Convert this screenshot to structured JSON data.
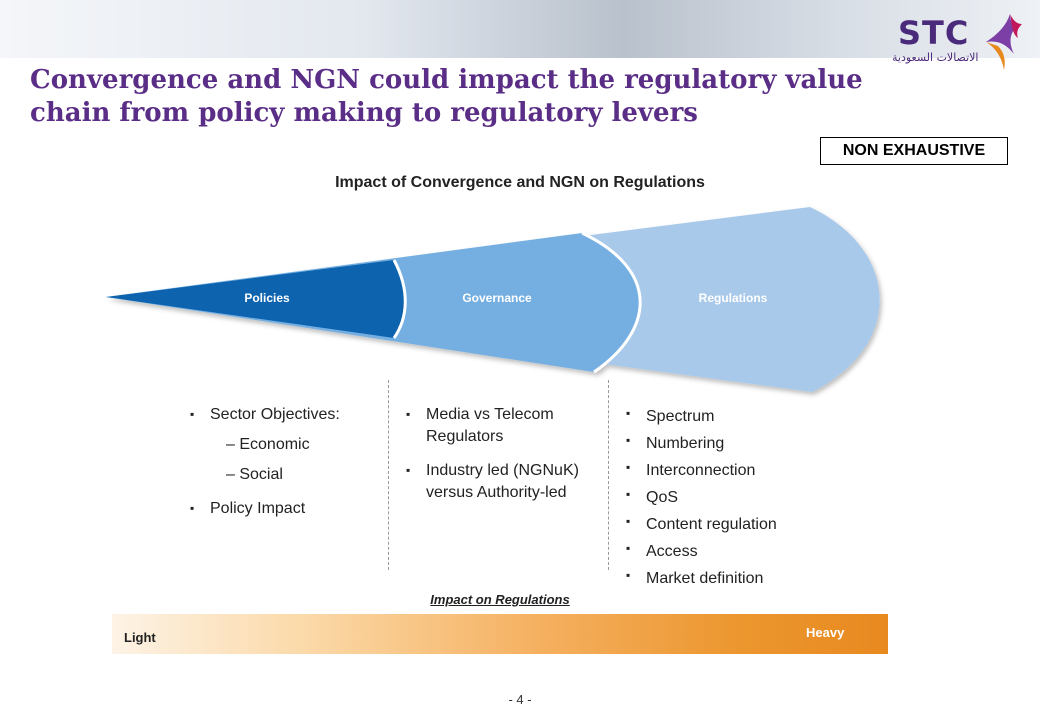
{
  "header": {
    "logo_text": "STC",
    "logo_arabic": "الاتصالات السعودية",
    "title": "Convergence and NGN could impact the regulatory value chain from policy making to regulatory levers"
  },
  "badge": {
    "label": "NON EXHAUSTIVE"
  },
  "diagram": {
    "title": "Impact of Convergence and NGN on Regulations",
    "segments": [
      {
        "label": "Policies",
        "color": "#0b63ae"
      },
      {
        "label": "Governance",
        "color": "#6fa8dc"
      },
      {
        "label": "Regulations",
        "color": "#a8c9ea"
      }
    ]
  },
  "columns": {
    "policies": {
      "item1": "Sector Objectives:",
      "sub1": "– Economic",
      "sub2": "– Social",
      "item2": "Policy Impact"
    },
    "governance": {
      "item1": "Media vs Telecom Regulators",
      "item2": "Industry led (NGNuK) versus Authority-led"
    },
    "regulations": {
      "items": [
        "Spectrum",
        "Numbering",
        "Interconnection",
        "QoS",
        "Content regulation",
        "Access",
        "Market definition"
      ]
    }
  },
  "impact_scale": {
    "label": "Impact on Regulations",
    "low": "Light",
    "high": "Heavy",
    "colors": {
      "start": "#fdf3e6",
      "end": "#e8891f"
    }
  },
  "footer": {
    "page_number": "- 4 -"
  },
  "icons": {
    "bullet": "square-bullet-icon",
    "logo_mark": "stc-star-icon"
  }
}
